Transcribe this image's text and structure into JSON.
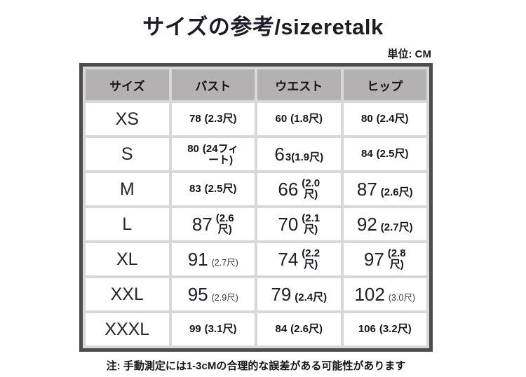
{
  "title": "サイズの参考/sizeretalk",
  "unit_label": "単位: CM",
  "footer_note": "注: 手動測定には1-3cMの合理的な誤差がある可能性があります",
  "colors": {
    "header_bg": "#b3b1b1",
    "outer_border": "#4d4d4d",
    "grid": "#d9d8d6",
    "text": "#1c1c26"
  },
  "table": {
    "headers": [
      "サイズ",
      "バスト",
      "ウエスト",
      "ヒップ"
    ],
    "rows": [
      {
        "size": "XS",
        "cells": [
          {
            "num": "78",
            "num_size": "small",
            "paren": "(2.3尺)",
            "paren_style": "bold"
          },
          {
            "num": "60",
            "num_size": "small",
            "paren": "(1.8尺)",
            "paren_style": "bold"
          },
          {
            "num": "80",
            "num_size": "small",
            "paren": "(2.4尺)",
            "paren_style": "bold"
          }
        ]
      },
      {
        "size": "S",
        "cells": [
          {
            "num": "80",
            "num_size": "small",
            "paren": "(24フィ\nート)",
            "paren_style": "bold"
          },
          {
            "num": "6",
            "num_size": "big",
            "paren": "3(1.9尺)",
            "paren_style": "bold",
            "tight": true
          },
          {
            "num": "84",
            "num_size": "small",
            "paren": "(2.5尺)",
            "paren_style": "bold"
          }
        ]
      },
      {
        "size": "M",
        "cells": [
          {
            "num": "83",
            "num_size": "small",
            "paren": "(2.5尺)",
            "paren_style": "bold"
          },
          {
            "num": "66",
            "num_size": "big",
            "paren": "(2.0\n尺)",
            "paren_style": "bold"
          },
          {
            "num": "87",
            "num_size": "big",
            "paren": "(2.6尺)",
            "paren_style": "bold"
          }
        ]
      },
      {
        "size": "L",
        "cells": [
          {
            "num": "87",
            "num_size": "big",
            "paren": "(2.6\n尺)",
            "paren_style": "bold"
          },
          {
            "num": "70",
            "num_size": "big",
            "paren": "(2.1\n尺)",
            "paren_style": "bold"
          },
          {
            "num": "92",
            "num_size": "big",
            "paren": "(2.7尺)",
            "paren_style": "bold"
          }
        ]
      },
      {
        "size": "XL",
        "cells": [
          {
            "num": "91",
            "num_size": "big",
            "paren": "(2.7尺)",
            "paren_style": "plain"
          },
          {
            "num": "74",
            "num_size": "big",
            "paren": "(2.2\n尺)",
            "paren_style": "bold"
          },
          {
            "num": "97",
            "num_size": "big",
            "paren": "(2.8\n尺)",
            "paren_style": "bold"
          }
        ]
      },
      {
        "size": "XXL",
        "cells": [
          {
            "num": "95",
            "num_size": "big",
            "paren": "(2.9尺)",
            "paren_style": "plain"
          },
          {
            "num": "79",
            "num_size": "big",
            "paren": "(2.4尺)",
            "paren_style": "bold"
          },
          {
            "num": "102",
            "num_size": "big",
            "paren": "(3.0尺)",
            "paren_style": "plain"
          }
        ]
      },
      {
        "size": "XXXL",
        "cells": [
          {
            "num": "99",
            "num_size": "small",
            "paren": "(3.1尺)",
            "paren_style": "bold"
          },
          {
            "num": "84",
            "num_size": "small",
            "paren": "(2.6尺)",
            "paren_style": "bold"
          },
          {
            "num": "106",
            "num_size": "small",
            "paren": "(3.2尺)",
            "paren_style": "bold"
          }
        ]
      }
    ]
  },
  "chart_data": {
    "type": "table",
    "title": "サイズの参考/sizeretalk",
    "unit": "CM",
    "columns": [
      "サイズ",
      "バスト",
      "ウエスト",
      "ヒップ"
    ],
    "rows": [
      [
        "XS",
        "78 (2.3尺)",
        "60 (1.8尺)",
        "80 (2.4尺)"
      ],
      [
        "S",
        "80 (24フィート)",
        "63(1.9尺)",
        "84 (2.5尺)"
      ],
      [
        "M",
        "83 (2.5尺)",
        "66 (2.0尺)",
        "87 (2.6尺)"
      ],
      [
        "L",
        "87 (2.6尺)",
        "70 (2.1尺)",
        "92 (2.7尺)"
      ],
      [
        "XL",
        "91 (2.7尺)",
        "74 (2.2尺)",
        "97 (2.8尺)"
      ],
      [
        "XXL",
        "95 (2.9尺)",
        "79 (2.4尺)",
        "102 (3.0尺)"
      ],
      [
        "XXXL",
        "99 (3.1尺)",
        "84 (2.6尺)",
        "106 (3.2尺)"
      ]
    ],
    "note": "注: 手動測定には1-3cMの合理的な誤差がある可能性があります"
  }
}
